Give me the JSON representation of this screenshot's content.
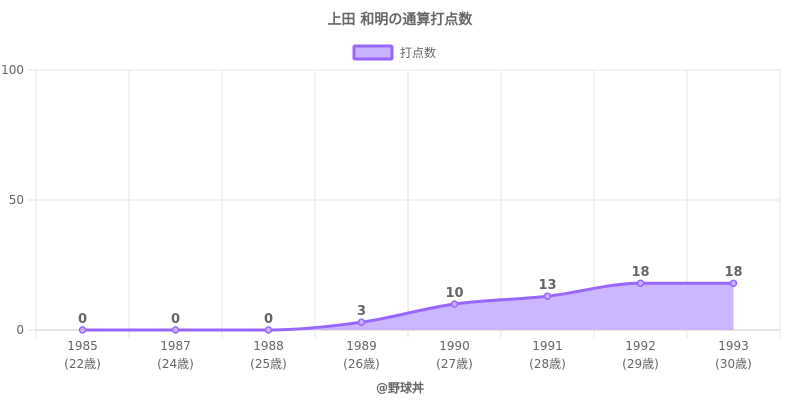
{
  "colors": {
    "line": "#9966ff",
    "fill": "#c9b2ff",
    "grid": "#e5e5e5",
    "axis": "#cccccc",
    "text": "#666666"
  },
  "chart_data": {
    "type": "area",
    "title": "上田 和明の通算打点数",
    "categories": [
      "1985",
      "1987",
      "1988",
      "1989",
      "1990",
      "1991",
      "1992",
      "1993"
    ],
    "category_sublabels": [
      "(22歳)",
      "(24歳)",
      "(25歳)",
      "(26歳)",
      "(27歳)",
      "(28歳)",
      "(29歳)",
      "(30歳)"
    ],
    "series": [
      {
        "name": "打点数",
        "values": [
          0,
          0,
          0,
          3,
          10,
          13,
          18,
          18
        ]
      }
    ],
    "data_labels": [
      "0",
      "0",
      "0",
      "3",
      "10",
      "13",
      "18",
      "18"
    ],
    "ylim": [
      0,
      100
    ],
    "yticks": [
      0,
      50,
      100
    ],
    "ytick_labels": [
      "0",
      "50",
      "100"
    ],
    "grid": true,
    "legend_position": "top-center"
  },
  "footer": {
    "credit": "@野球丼"
  }
}
